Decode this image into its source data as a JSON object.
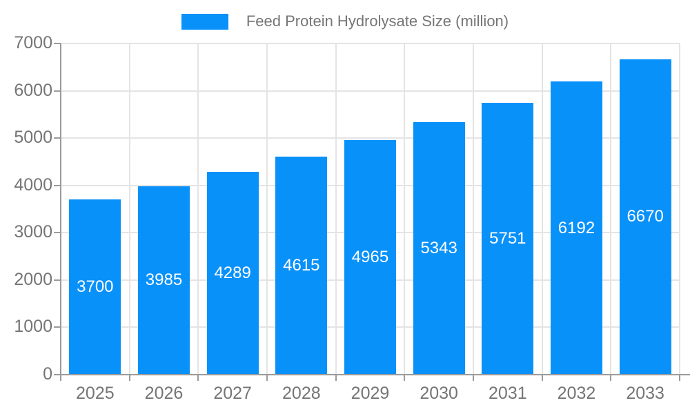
{
  "legend": {
    "label": "Feed Protein Hydrolysate Size (million)",
    "swatch_color": "#0991fa"
  },
  "chart_data": {
    "type": "bar",
    "title": "Feed Protein Hydrolysate Size (million)",
    "categories": [
      "2025",
      "2026",
      "2027",
      "2028",
      "2029",
      "2030",
      "2031",
      "2032",
      "2033"
    ],
    "series": [
      {
        "name": "Feed Protein Hydrolysate Size (million)",
        "values": [
          3700,
          3985,
          4289,
          4615,
          4965,
          5343,
          5751,
          6192,
          6670
        ]
      }
    ],
    "xlabel": "",
    "ylabel": "",
    "ylim": [
      0,
      7000
    ],
    "ytick_step": 1000,
    "yticks": [
      0,
      1000,
      2000,
      3000,
      4000,
      5000,
      6000,
      7000
    ],
    "grid": true,
    "legend_position": "top-center",
    "value_labels": "inside-center",
    "bar_color": "#0991fa",
    "value_label_color": "#ffffff",
    "axis_text_color": "#757575",
    "gridline_color": "#e4e4e4",
    "axis_line_color": "#9b9b9b"
  }
}
